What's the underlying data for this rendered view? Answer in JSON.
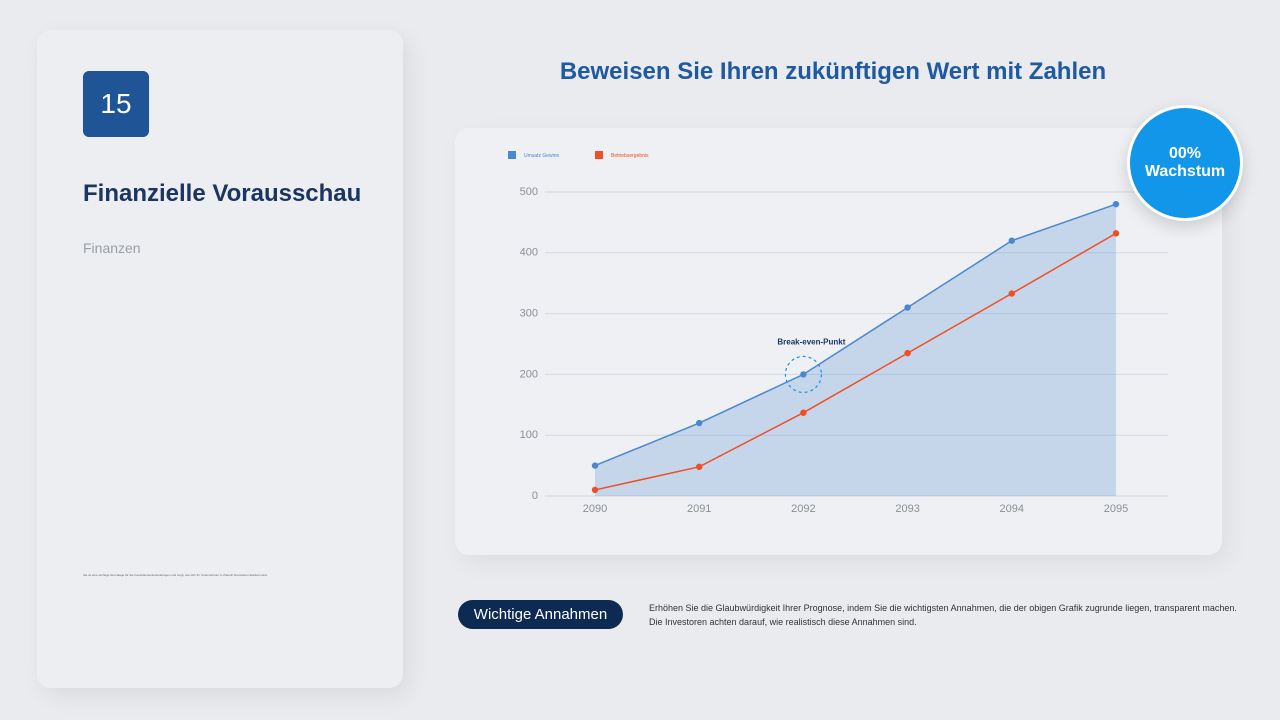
{
  "slide": {
    "number": "15",
    "heading": "Finanzielle Vorausschau",
    "section": "Finanzen",
    "footnote": "Sie ist eine wichtige Grundlage für die Investitionsentscheidungen und zeigt, wie sich Ihr Unternehmen in Zukunft finanziell entwickeln wird.",
    "badge_value": "00%",
    "badge_label": "Wachstum",
    "button": "Wichtige Annahmen",
    "description": [
      "Erhöhen Sie die Glaubwürdigkeit Ihrer Prognose, indem Sie die wichtigsten Annahmen, die der obigen Grafik zugrunde liegen, transparent machen.",
      "Die Investoren achten darauf, wie realistisch diese Annahmen sind."
    ]
  },
  "chart_data": {
    "type": "line",
    "title": "Beweisen Sie Ihren zukünftigen Wert mit Zahlen",
    "categories": [
      "2090",
      "2091",
      "2092",
      "2093",
      "2094",
      "2095"
    ],
    "series": [
      {
        "name": "Umsatz Gewinn",
        "color": "#4a87d0",
        "values": [
          50,
          120,
          200,
          310,
          420,
          480
        ]
      },
      {
        "name": "Betriebsergebnis",
        "color": "#f04e23",
        "values": [
          10,
          48,
          137,
          235,
          333,
          432
        ]
      }
    ],
    "ylim": [
      0,
      500
    ],
    "yticks": [
      0,
      100,
      200,
      300,
      400,
      500
    ],
    "grid": true,
    "annotation": {
      "text": "Break-even-Punkt",
      "category_index": 2
    }
  }
}
